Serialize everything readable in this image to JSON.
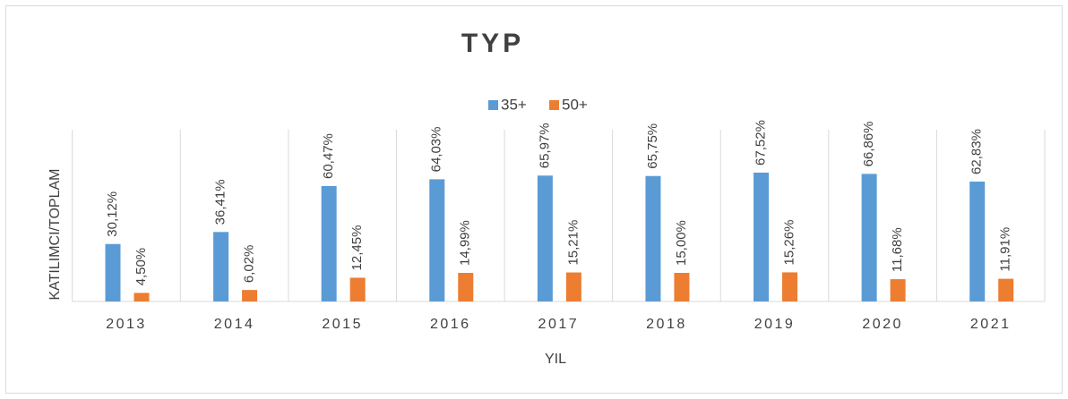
{
  "chart_data": {
    "type": "bar",
    "title": "TYP",
    "x_label": "YIL",
    "y_label": "KATILIMCI/TOPLAM",
    "categories": [
      "2013",
      "2014",
      "2015",
      "2016",
      "2017",
      "2018",
      "2019",
      "2020",
      "2021"
    ],
    "series": [
      {
        "name": "35+",
        "color": "#5b9bd5",
        "values": [
          30.12,
          36.41,
          60.47,
          64.03,
          65.97,
          65.75,
          67.52,
          66.86,
          62.83
        ],
        "value_labels": [
          "30,12%",
          "36,41%",
          "60,47%",
          "64,03%",
          "65,97%",
          "65,75%",
          "67,52%",
          "66,86%",
          "62,83%"
        ]
      },
      {
        "name": "50+",
        "color": "#ed7d31",
        "values": [
          4.5,
          6.02,
          12.45,
          14.99,
          15.21,
          15.0,
          15.26,
          11.68,
          11.91
        ],
        "value_labels": [
          "4,50%",
          "6,02%",
          "12,45%",
          "14,99%",
          "15,21%",
          "15,00%",
          "15,26%",
          "11,68%",
          "11,91%"
        ]
      }
    ],
    "ylim": [
      0,
      90
    ],
    "legend": "top"
  }
}
